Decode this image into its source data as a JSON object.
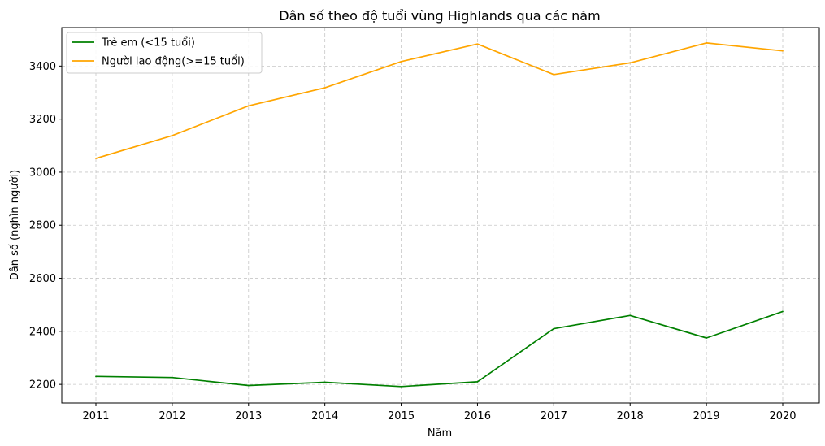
{
  "chart_data": {
    "type": "line",
    "title": "Dân số theo độ tuổi vùng Highlands qua các năm",
    "xlabel": "Năm",
    "ylabel": "Dân số (nghìn người)",
    "x": [
      "2011",
      "2012",
      "2013",
      "2014",
      "2015",
      "2016",
      "2017",
      "2018",
      "2019",
      "2020"
    ],
    "ylim": [
      2130,
      3545
    ],
    "yticks": [
      2200,
      2400,
      2600,
      2800,
      3000,
      3200,
      3400
    ],
    "grid": true,
    "legend_position": "top-left",
    "series": [
      {
        "name": "Trẻ em (<15 tuổi)",
        "color": "#008000",
        "values": [
          2230,
          2226,
          2196,
          2208,
          2192,
          2210,
          2410,
          2460,
          2375,
          2475
        ]
      },
      {
        "name": "Người lao động(>=15 tuổi)",
        "color": "#ffa500",
        "values": [
          3052,
          3138,
          3250,
          3318,
          3417,
          3483,
          3368,
          3412,
          3487,
          3457
        ]
      }
    ]
  }
}
